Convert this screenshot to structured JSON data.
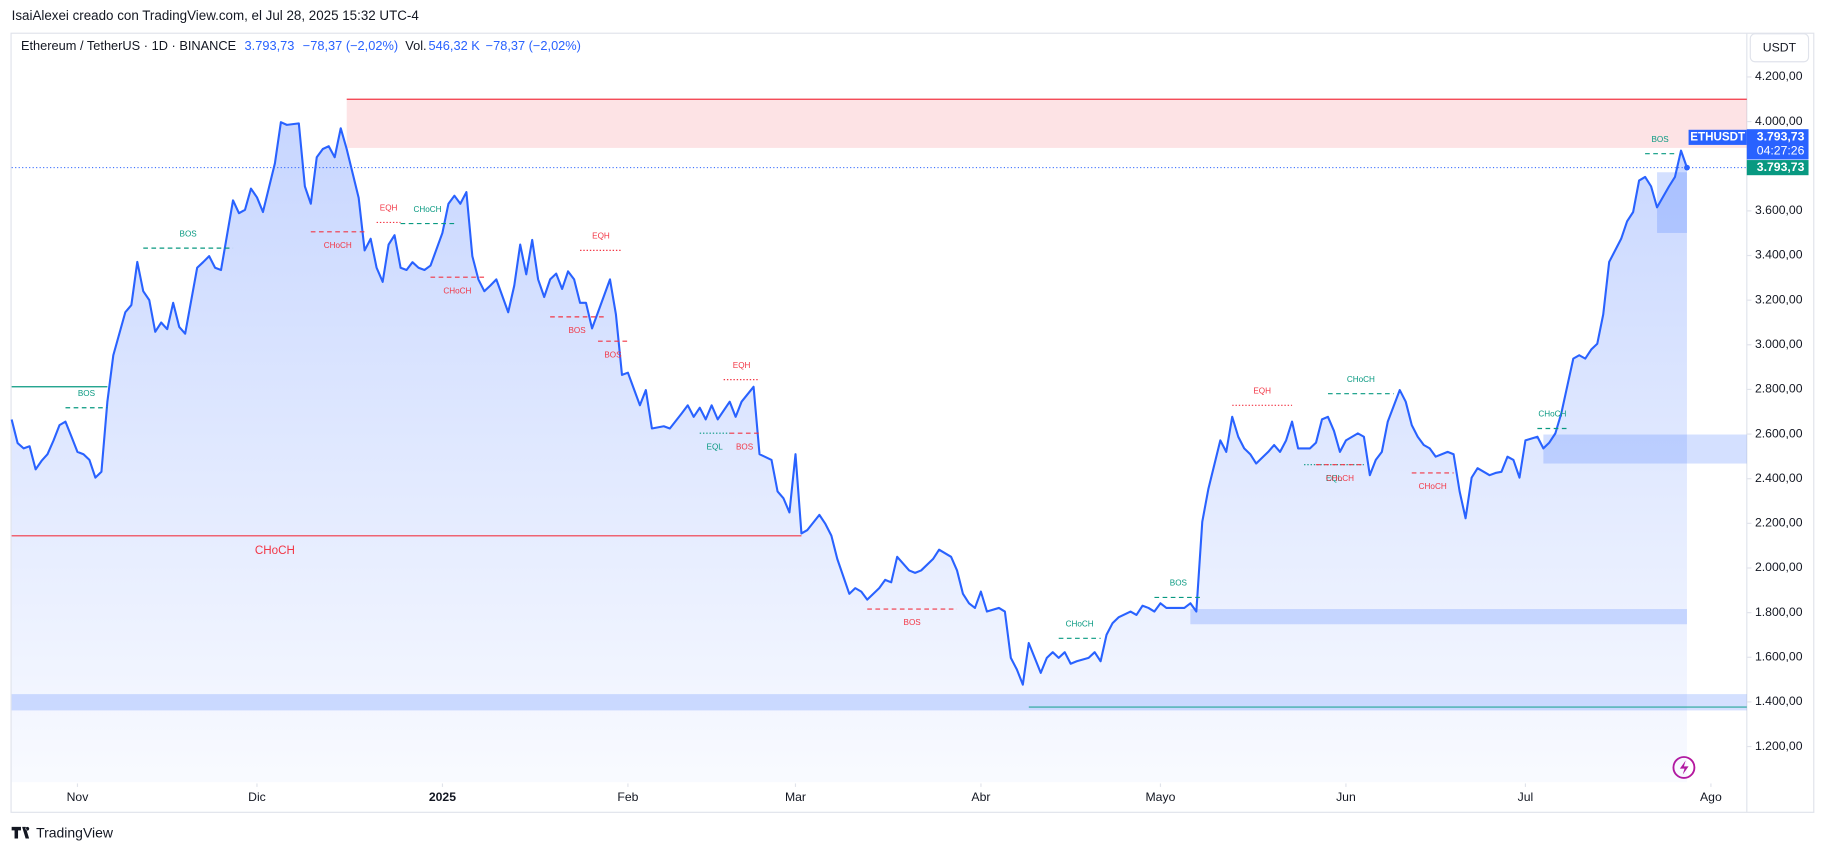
{
  "header": {
    "byline": "IsaiAlexei creado con TradingView.com, el Jul 28, 2025 15:32 UTC-4",
    "symbol": "Ethereum / TetherUS · 1D · BINANCE",
    "change": "−78,37 (−2,02%)",
    "vol_label": "Vol.",
    "volume": "546,32 K",
    "vol_change": "−78,37 (−2,02%)",
    "currency": "USDT",
    "ticker": "ETHUSDT",
    "countdown": "04:27:26",
    "brand": "TradingView"
  },
  "chart_data": {
    "type": "line",
    "color": "#2962ff",
    "last_price": {
      "value": 3793.73,
      "label": "3.793,73"
    },
    "x": [
      -11,
      -10,
      -9,
      -8,
      -7,
      -6,
      -5,
      -4,
      -3,
      -2,
      -1,
      0,
      1,
      2,
      3,
      4,
      5,
      6,
      8,
      9,
      10,
      11,
      12,
      13,
      14,
      15,
      16,
      17,
      18,
      20,
      21,
      22,
      23,
      24,
      26,
      27,
      28,
      29,
      30,
      31,
      33,
      34,
      35,
      37,
      38,
      39,
      40,
      41,
      42,
      43,
      44,
      45,
      47,
      48,
      49,
      50,
      51,
      52,
      53,
      54,
      55,
      56,
      57,
      58,
      59,
      61,
      62,
      63,
      64,
      65,
      66,
      67,
      68,
      69,
      70,
      72,
      73,
      74,
      75,
      76,
      77,
      78,
      79,
      80,
      81,
      82,
      83,
      84,
      85,
      86,
      87,
      89,
      90,
      91,
      92,
      94,
      95,
      96,
      98,
      99,
      101,
      102,
      103,
      104,
      105,
      106,
      107,
      109,
      110,
      111,
      113,
      114,
      116,
      117,
      118,
      119,
      120,
      121,
      122,
      124,
      125,
      126,
      127,
      129,
      130,
      131,
      132,
      134,
      135,
      136,
      137,
      139,
      140,
      141,
      143,
      144,
      146,
      147,
      148,
      149,
      150,
      151,
      152,
      154,
      155,
      156,
      157,
      158,
      159,
      161,
      162,
      163,
      164,
      165,
      166,
      167,
      169,
      170,
      171,
      172,
      173,
      174,
      176,
      177,
      178,
      179,
      180,
      181,
      182,
      184,
      185,
      186,
      187,
      188,
      189,
      191,
      192,
      193,
      194,
      195,
      196,
      197,
      199,
      200,
      201,
      202,
      203,
      204,
      206,
      207,
      208,
      209,
      210,
      211,
      212,
      214,
      215,
      216,
      217,
      218,
      219,
      221,
      222,
      223,
      224,
      225,
      226,
      227,
      229,
      230,
      231,
      232,
      233,
      234,
      236,
      237,
      238,
      239,
      240,
      241,
      242,
      244,
      245,
      246,
      247,
      248,
      250,
      251,
      252,
      253,
      254,
      255,
      256,
      258,
      259,
      260,
      261,
      262,
      263,
      264,
      266,
      267,
      268,
      269
    ],
    "values": [
      2665,
      2560,
      2536,
      2545,
      2442,
      2480,
      2510,
      2572,
      2640,
      2656,
      2588,
      2520,
      2510,
      2484,
      2405,
      2431,
      2745,
      2953,
      3146,
      3178,
      3371,
      3240,
      3200,
      3058,
      3100,
      3070,
      3188,
      3080,
      3050,
      3345,
      3370,
      3397,
      3345,
      3335,
      3647,
      3590,
      3605,
      3700,
      3660,
      3595,
      3814,
      3997,
      3985,
      3992,
      3710,
      3632,
      3840,
      3877,
      3890,
      3840,
      3970,
      3877,
      3658,
      3423,
      3475,
      3345,
      3282,
      3449,
      3491,
      3345,
      3335,
      3370,
      3345,
      3335,
      3355,
      3501,
      3632,
      3668,
      3632,
      3684,
      3397,
      3293,
      3240,
      3265,
      3293,
      3146,
      3265,
      3449,
      3316,
      3470,
      3293,
      3214,
      3293,
      3319,
      3250,
      3329,
      3293,
      3188,
      3188,
      3073,
      3146,
      3293,
      3136,
      2865,
      2875,
      2729,
      2797,
      2625,
      2635,
      2625,
      2693,
      2729,
      2677,
      2718,
      2666,
      2729,
      2666,
      2745,
      2677,
      2745,
      2812,
      2510,
      2484,
      2343,
      2312,
      2249,
      2510,
      2155,
      2170,
      2238,
      2197,
      2145,
      2040,
      1884,
      1910,
      1894,
      1858,
      1910,
      1947,
      1936,
      2050,
      1989,
      1978,
      1989,
      2040,
      2082,
      2050,
      1989,
      1884,
      1842,
      1821,
      1894,
      1805,
      1821,
      1805,
      1597,
      1545,
      1477,
      1664,
      1530,
      1597,
      1623,
      1597,
      1623,
      1571,
      1582,
      1597,
      1623,
      1582,
      1701,
      1753,
      1779,
      1805,
      1790,
      1831,
      1821,
      1805,
      1842,
      1821,
      1821,
      1821,
      1842,
      1805,
      2207,
      2353,
      2572,
      2520,
      2677,
      2588,
      2536,
      2510,
      2468,
      2520,
      2551,
      2520,
      2572,
      2656,
      2536,
      2536,
      2562,
      2666,
      2677,
      2614,
      2520,
      2572,
      2603,
      2588,
      2416,
      2484,
      2520,
      2656,
      2797,
      2745,
      2640,
      2588,
      2551,
      2536,
      2499,
      2520,
      2510,
      2343,
      2223,
      2405,
      2447,
      2416,
      2426,
      2431,
      2499,
      2484,
      2405,
      2572,
      2588,
      2536,
      2562,
      2603,
      2693,
      2938,
      2953,
      2938,
      2979,
      3005,
      3136,
      3371,
      3475,
      3553,
      3595,
      3736,
      3752,
      3710,
      3616,
      3710,
      3752,
      3870,
      3793.73
    ],
    "xlim": [
      -11,
      279
    ],
    "xticks": [
      {
        "value": 0,
        "label": "Nov"
      },
      {
        "value": 30,
        "label": "Dic"
      },
      {
        "value": 61,
        "label": "2025"
      },
      {
        "value": 92,
        "label": "Feb"
      },
      {
        "value": 120,
        "label": "Mar"
      },
      {
        "value": 151,
        "label": "Abr"
      },
      {
        "value": 181,
        "label": "Mayo"
      },
      {
        "value": 212,
        "label": "Jun"
      },
      {
        "value": 242,
        "label": "Jul"
      },
      {
        "value": 273,
        "label": "Ago"
      }
    ],
    "ylim": [
      1040,
      4400
    ],
    "yticks": [
      {
        "value": 1200,
        "label": "1.200,00"
      },
      {
        "value": 1400,
        "label": "1.400,00"
      },
      {
        "value": 1600,
        "label": "1.600,00"
      },
      {
        "value": 1800,
        "label": "1.800,00"
      },
      {
        "value": 2000,
        "label": "2.000,00"
      },
      {
        "value": 2200,
        "label": "2.200,00"
      },
      {
        "value": 2400,
        "label": "2.400,00"
      },
      {
        "value": 2600,
        "label": "2.600,00"
      },
      {
        "value": 2800,
        "label": "2.800,00"
      },
      {
        "value": 3000,
        "label": "3.000,00"
      },
      {
        "value": 3200,
        "label": "3.200,00"
      },
      {
        "value": 3400,
        "label": "3.400,00"
      },
      {
        "value": 3600,
        "label": "3.600,00"
      },
      {
        "value": 3800,
        "label": "3.800,00"
      },
      {
        "value": 4000,
        "label": "4.000,00"
      },
      {
        "value": 4200,
        "label": "4.200,00"
      }
    ],
    "zones": [
      {
        "y": [
          4100,
          3882
        ],
        "x": [
          45,
          279
        ],
        "color": "#f23645"
      },
      {
        "y": [
          3773,
          3501
        ],
        "x": [
          264,
          269
        ],
        "color": "#2962ff"
      },
      {
        "y": [
          2598,
          2468
        ],
        "x": [
          245,
          279
        ],
        "color": "#2962ff"
      },
      {
        "y": [
          1816,
          1748
        ],
        "x": [
          186,
          269
        ],
        "color": "#2962ff"
      },
      {
        "y": [
          1435,
          1362
        ],
        "x": [
          -11,
          279
        ],
        "color": "#2962ff"
      }
    ],
    "levels": [
      {
        "level": 2812,
        "x": [
          -11,
          5
        ],
        "color": "#089981"
      },
      {
        "level": 1377,
        "x": [
          159,
          279
        ],
        "color": "#26a69a"
      }
    ],
    "annotations": [
      {
        "text": "BOS",
        "level": 3433,
        "x": [
          11,
          26
        ],
        "color": "#089981",
        "style": "dashed",
        "label": "above"
      },
      {
        "text": "BOS",
        "level": 2718,
        "x": [
          -2,
          5
        ],
        "color": "#089981",
        "style": "dashed",
        "label": "above"
      },
      {
        "text": "CHoCH",
        "level": 3506,
        "x": [
          39,
          48
        ],
        "color": "#f23645",
        "style": "dashed",
        "label": "below"
      },
      {
        "text": "EQH",
        "level": 3548,
        "x": [
          50,
          54
        ],
        "color": "#f23645",
        "style": "dotted",
        "label": "above"
      },
      {
        "text": "CHoCH",
        "level": 3543,
        "x": [
          54,
          63
        ],
        "color": "#089981",
        "style": "dashed",
        "label": "above"
      },
      {
        "text": "CHoCH",
        "level": 3303,
        "x": [
          59,
          68
        ],
        "color": "#f23645",
        "style": "dashed",
        "label": "below"
      },
      {
        "text": "EQH",
        "level": 3423,
        "x": [
          84,
          91
        ],
        "color": "#f23645",
        "style": "dotted",
        "label": "above"
      },
      {
        "text": "BOS",
        "level": 3125,
        "x": [
          79,
          88
        ],
        "color": "#f23645",
        "style": "dashed",
        "label": "below"
      },
      {
        "text": "BOS",
        "level": 3016,
        "x": [
          87,
          92
        ],
        "color": "#f23645",
        "style": "dashed",
        "label": "below"
      },
      {
        "text": "EQH",
        "level": 2844,
        "x": [
          108,
          114
        ],
        "color": "#f23645",
        "style": "dotted",
        "label": "above"
      },
      {
        "text": "EQL",
        "level": 2604,
        "x": [
          104,
          109
        ],
        "color": "#089981",
        "style": "dotted",
        "label": "below"
      },
      {
        "text": "BOS",
        "level": 2604,
        "x": [
          109,
          114
        ],
        "color": "#f23645",
        "style": "dashed",
        "label": "below"
      },
      {
        "text": "CHoCH",
        "level": 2144,
        "x": [
          -11,
          121
        ],
        "color": "#f23645",
        "style": "solid",
        "label": "below",
        "label_x": 33
      },
      {
        "text": "BOS",
        "level": 1816,
        "x": [
          132,
          147
        ],
        "color": "#f23645",
        "style": "dashed",
        "label": "below"
      },
      {
        "text": "CHoCH",
        "level": 1685,
        "x": [
          164,
          171
        ],
        "color": "#089981",
        "style": "dashed",
        "label": "above"
      },
      {
        "text": "BOS",
        "level": 1868,
        "x": [
          180,
          188
        ],
        "color": "#089981",
        "style": "dashed",
        "label": "above"
      },
      {
        "text": "EQH",
        "level": 2729,
        "x": [
          193,
          203
        ],
        "color": "#f23645",
        "style": "dotted",
        "label": "above"
      },
      {
        "text": "CHoCH",
        "level": 2781,
        "x": [
          209,
          220
        ],
        "color": "#089981",
        "style": "dashed",
        "label": "above"
      },
      {
        "text": "EQL",
        "level": 2463,
        "x": [
          205,
          215
        ],
        "color": "#089981",
        "style": "dotted",
        "label": "below"
      },
      {
        "text": "CHoCH",
        "level": 2463,
        "x": [
          207,
          215
        ],
        "color": "#f23645",
        "style": "dashed",
        "label": "below"
      },
      {
        "text": "CHoCH",
        "level": 2426,
        "x": [
          223,
          230
        ],
        "color": "#f23645",
        "style": "dashed",
        "label": "below"
      },
      {
        "text": "CHoCH",
        "level": 2625,
        "x": [
          244,
          249
        ],
        "color": "#089981",
        "style": "dashed",
        "label": "above"
      },
      {
        "text": "BOS",
        "level": 3856,
        "x": [
          262,
          267
        ],
        "color": "#089981",
        "style": "dashed",
        "label": "above"
      }
    ]
  }
}
